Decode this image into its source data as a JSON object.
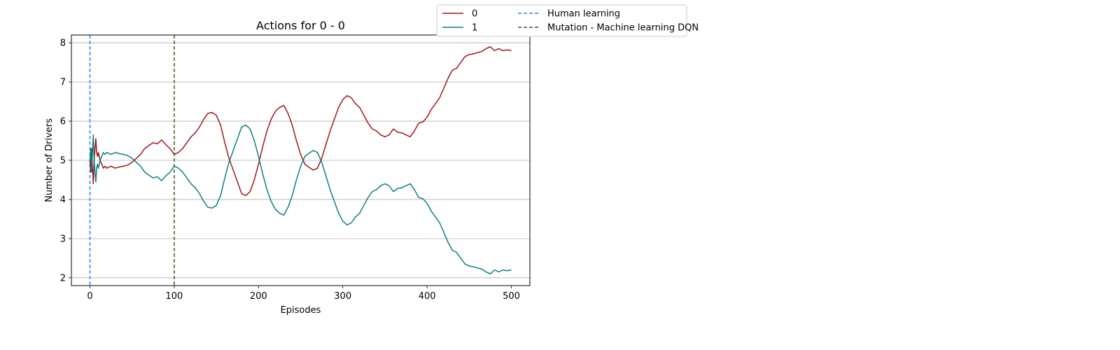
{
  "chart_data": {
    "type": "line",
    "title": "Actions for 0 - 0",
    "xlabel": "Episodes",
    "ylabel": "Number of Drivers",
    "xlim": [
      -22,
      522
    ],
    "ylim": [
      1.8,
      8.2
    ],
    "xticks": [
      0,
      100,
      200,
      300,
      400,
      500
    ],
    "yticks": [
      2,
      3,
      4,
      5,
      6,
      7,
      8
    ],
    "grid": "horizontal",
    "legend_position": "upper-right-outside",
    "series": [
      {
        "name": "0",
        "color": "#a3151b",
        "style": "solid",
        "x": [
          0,
          1,
          2,
          3,
          4,
          5,
          6,
          7,
          8,
          9,
          10,
          12,
          14,
          16,
          18,
          20,
          25,
          30,
          35,
          40,
          45,
          50,
          55,
          60,
          65,
          70,
          75,
          80,
          85,
          90,
          95,
          100,
          105,
          110,
          115,
          120,
          125,
          130,
          135,
          140,
          145,
          150,
          155,
          160,
          165,
          170,
          175,
          180,
          185,
          190,
          195,
          200,
          205,
          210,
          215,
          220,
          225,
          230,
          235,
          240,
          245,
          250,
          255,
          260,
          265,
          270,
          275,
          280,
          285,
          290,
          295,
          300,
          305,
          310,
          315,
          320,
          325,
          330,
          335,
          340,
          345,
          350,
          355,
          360,
          365,
          370,
          375,
          380,
          385,
          390,
          395,
          400,
          405,
          410,
          415,
          420,
          425,
          430,
          435,
          440,
          445,
          450,
          455,
          460,
          465,
          470,
          475,
          480,
          485,
          490,
          495,
          500
        ],
        "values": [
          5.0,
          4.7,
          5.3,
          4.8,
          4.4,
          5.0,
          5.3,
          5.55,
          5.2,
          5.1,
          5.2,
          5.0,
          4.9,
          4.8,
          4.85,
          4.8,
          4.85,
          4.8,
          4.83,
          4.85,
          4.88,
          4.95,
          5.05,
          5.15,
          5.3,
          5.38,
          5.45,
          5.42,
          5.52,
          5.4,
          5.3,
          5.15,
          5.2,
          5.3,
          5.45,
          5.6,
          5.7,
          5.85,
          6.05,
          6.2,
          6.22,
          6.15,
          5.9,
          5.45,
          5.05,
          4.75,
          4.45,
          4.15,
          4.1,
          4.2,
          4.5,
          4.9,
          5.35,
          5.75,
          6.05,
          6.25,
          6.35,
          6.4,
          6.2,
          5.9,
          5.5,
          5.15,
          4.9,
          4.82,
          4.75,
          4.8,
          5.05,
          5.4,
          5.75,
          6.05,
          6.35,
          6.55,
          6.65,
          6.6,
          6.45,
          6.35,
          6.15,
          5.95,
          5.8,
          5.75,
          5.65,
          5.6,
          5.65,
          5.8,
          5.72,
          5.7,
          5.65,
          5.6,
          5.75,
          5.95,
          5.98,
          6.1,
          6.3,
          6.45,
          6.6,
          6.85,
          7.1,
          7.3,
          7.35,
          7.5,
          7.65,
          7.7,
          7.72,
          7.75,
          7.78,
          7.85,
          7.9,
          7.8,
          7.85,
          7.8,
          7.82,
          7.8
        ]
      },
      {
        "name": "1",
        "color": "#0e7f7f",
        "style": "solid",
        "x": [
          0,
          1,
          2,
          3,
          4,
          5,
          6,
          7,
          8,
          9,
          10,
          12,
          14,
          16,
          18,
          20,
          25,
          30,
          35,
          40,
          45,
          50,
          55,
          60,
          65,
          70,
          75,
          80,
          85,
          90,
          95,
          100,
          105,
          110,
          115,
          120,
          125,
          130,
          135,
          140,
          145,
          150,
          155,
          160,
          165,
          170,
          175,
          180,
          185,
          190,
          195,
          200,
          205,
          210,
          215,
          220,
          225,
          230,
          235,
          240,
          245,
          250,
          255,
          260,
          265,
          270,
          275,
          280,
          285,
          290,
          295,
          300,
          305,
          310,
          315,
          320,
          325,
          330,
          335,
          340,
          345,
          350,
          355,
          360,
          365,
          370,
          375,
          380,
          385,
          390,
          395,
          400,
          405,
          410,
          415,
          420,
          425,
          430,
          435,
          440,
          445,
          450,
          455,
          460,
          465,
          470,
          475,
          480,
          485,
          490,
          495,
          500
        ],
        "values": [
          5.0,
          5.3,
          4.7,
          5.2,
          5.65,
          5.0,
          4.7,
          4.45,
          4.8,
          4.9,
          4.8,
          5.0,
          5.1,
          5.2,
          5.15,
          5.2,
          5.15,
          5.2,
          5.17,
          5.15,
          5.12,
          5.05,
          4.95,
          4.85,
          4.7,
          4.62,
          4.55,
          4.58,
          4.48,
          4.6,
          4.7,
          4.85,
          4.8,
          4.7,
          4.55,
          4.4,
          4.3,
          4.15,
          3.95,
          3.8,
          3.78,
          3.85,
          4.1,
          4.55,
          4.95,
          5.25,
          5.55,
          5.85,
          5.9,
          5.8,
          5.5,
          5.1,
          4.65,
          4.25,
          3.95,
          3.75,
          3.65,
          3.6,
          3.8,
          4.1,
          4.5,
          4.85,
          5.1,
          5.18,
          5.25,
          5.2,
          4.95,
          4.6,
          4.25,
          3.95,
          3.65,
          3.45,
          3.35,
          3.4,
          3.55,
          3.65,
          3.85,
          4.05,
          4.2,
          4.25,
          4.35,
          4.4,
          4.35,
          4.2,
          4.28,
          4.3,
          4.35,
          4.4,
          4.25,
          4.05,
          4.02,
          3.9,
          3.7,
          3.55,
          3.4,
          3.15,
          2.9,
          2.7,
          2.65,
          2.5,
          2.35,
          2.3,
          2.28,
          2.25,
          2.22,
          2.15,
          2.1,
          2.2,
          2.15,
          2.2,
          2.18,
          2.2
        ]
      }
    ],
    "vlines": [
      {
        "name": "Human learning",
        "x": 0,
        "color": "#1f86f4",
        "style": "dashed"
      },
      {
        "name": "Mutation - Machine learning DQN",
        "x": 100,
        "color": "#3b5a1e",
        "style": "dashed"
      }
    ]
  }
}
